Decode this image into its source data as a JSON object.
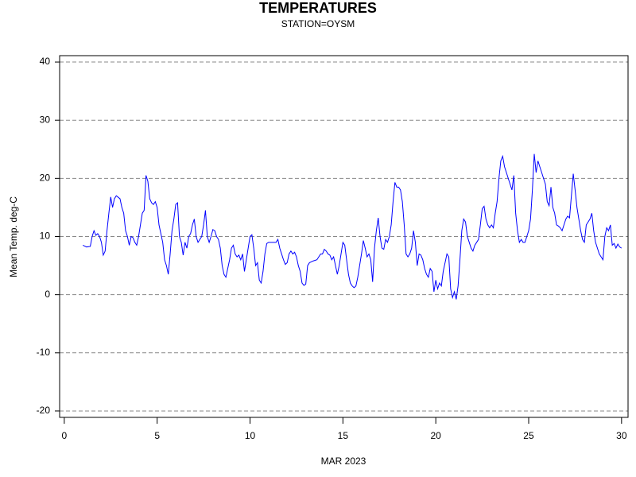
{
  "chart_data": {
    "type": "line",
    "title": "TEMPERATURES",
    "subtitle": "STATION=OYSM",
    "x_label": "MAR 2023",
    "y_label": "Mean Temp. deg-C",
    "color": "#0000ff",
    "grid": true,
    "xlim": [
      -0.25,
      30.35
    ],
    "ylim": [
      -21.1,
      41.1
    ],
    "xticks": [
      0,
      5,
      10,
      15,
      20,
      25,
      30
    ],
    "yticks": [
      -20,
      -10,
      0,
      10,
      20,
      30,
      40
    ],
    "x": [
      1.0,
      1.2,
      1.4,
      1.5,
      1.6,
      1.7,
      1.8,
      1.9,
      2.0,
      2.1,
      2.2,
      2.3,
      2.4,
      2.5,
      2.6,
      2.7,
      2.8,
      3.0,
      3.1,
      3.2,
      3.3,
      3.4,
      3.5,
      3.6,
      3.7,
      3.8,
      3.9,
      4.0,
      4.1,
      4.2,
      4.3,
      4.4,
      4.5,
      4.6,
      4.7,
      4.8,
      4.9,
      5.0,
      5.1,
      5.2,
      5.3,
      5.4,
      5.5,
      5.6,
      5.7,
      5.8,
      5.9,
      6.0,
      6.1,
      6.2,
      6.3,
      6.4,
      6.5,
      6.6,
      6.7,
      6.8,
      6.9,
      7.0,
      7.1,
      7.2,
      7.3,
      7.4,
      7.5,
      7.6,
      7.7,
      7.8,
      7.9,
      8.0,
      8.1,
      8.2,
      8.3,
      8.4,
      8.5,
      8.6,
      8.7,
      8.8,
      8.9,
      9.0,
      9.1,
      9.2,
      9.3,
      9.4,
      9.5,
      9.6,
      9.7,
      9.8,
      9.9,
      10.0,
      10.1,
      10.2,
      10.3,
      10.4,
      10.5,
      10.6,
      10.7,
      10.8,
      10.9,
      11.0,
      11.2,
      11.4,
      11.5,
      11.6,
      11.7,
      11.8,
      11.9,
      12.0,
      12.1,
      12.2,
      12.3,
      12.4,
      12.5,
      12.6,
      12.7,
      12.8,
      12.9,
      13.0,
      13.1,
      13.2,
      13.4,
      13.6,
      13.7,
      13.8,
      13.9,
      14.0,
      14.1,
      14.2,
      14.3,
      14.4,
      14.5,
      14.6,
      14.7,
      14.8,
      14.9,
      15.0,
      15.1,
      15.2,
      15.3,
      15.4,
      15.5,
      15.6,
      15.7,
      15.8,
      15.9,
      16.0,
      16.1,
      16.2,
      16.3,
      16.4,
      16.5,
      16.6,
      16.7,
      16.8,
      16.9,
      17.0,
      17.1,
      17.2,
      17.3,
      17.4,
      17.5,
      17.6,
      17.7,
      17.8,
      17.9,
      18.0,
      18.1,
      18.2,
      18.3,
      18.4,
      18.5,
      18.6,
      18.7,
      18.8,
      18.9,
      19.0,
      19.1,
      19.2,
      19.3,
      19.4,
      19.5,
      19.6,
      19.7,
      19.8,
      19.9,
      20.0,
      20.1,
      20.2,
      20.3,
      20.4,
      20.5,
      20.6,
      20.7,
      20.8,
      20.9,
      21.0,
      21.1,
      21.2,
      21.3,
      21.4,
      21.5,
      21.6,
      21.7,
      21.8,
      21.9,
      22.0,
      22.1,
      22.2,
      22.3,
      22.4,
      22.5,
      22.6,
      22.7,
      22.8,
      22.9,
      23.0,
      23.1,
      23.2,
      23.3,
      23.4,
      23.5,
      23.6,
      23.7,
      23.8,
      23.9,
      24.0,
      24.1,
      24.2,
      24.3,
      24.4,
      24.5,
      24.6,
      24.7,
      24.8,
      24.9,
      25.0,
      25.1,
      25.2,
      25.3,
      25.4,
      25.5,
      25.6,
      25.7,
      25.8,
      25.9,
      26.0,
      26.1,
      26.2,
      26.3,
      26.4,
      26.5,
      26.6,
      26.7,
      26.8,
      26.9,
      27.0,
      27.1,
      27.2,
      27.3,
      27.4,
      27.5,
      27.6,
      27.7,
      27.8,
      27.9,
      28.0,
      28.1,
      28.2,
      28.3,
      28.4,
      28.5,
      28.6,
      28.7,
      28.8,
      28.9,
      29.0,
      29.1,
      29.2,
      29.3,
      29.4,
      29.5,
      29.6,
      29.7,
      29.8,
      29.9,
      30.0
    ],
    "values": [
      8.5,
      8.2,
      8.3,
      10,
      11,
      10.2,
      10.5,
      10,
      9,
      6.8,
      7.5,
      11,
      14,
      16.8,
      15,
      16.5,
      17,
      16.5,
      15,
      14,
      11,
      10,
      8.5,
      10,
      9.8,
      9,
      8.5,
      10,
      12,
      14,
      14.5,
      20.5,
      19.5,
      16.5,
      15.8,
      15.5,
      16,
      15,
      12,
      10.5,
      9,
      6,
      5,
      3.5,
      7,
      11,
      13,
      15.5,
      15.8,
      10,
      9,
      6.8,
      9,
      8,
      10,
      10.5,
      12,
      13,
      10,
      9,
      9.5,
      10,
      12,
      14.5,
      10,
      9,
      10,
      11.2,
      11,
      10,
      9.5,
      8,
      5,
      3.5,
      3,
      4.5,
      6,
      8,
      8.5,
      7,
      6.5,
      6.8,
      6,
      7,
      4,
      6,
      8,
      10,
      10.3,
      8,
      5,
      5.5,
      2.5,
      2,
      4,
      7,
      8.8,
      9,
      9,
      9,
      9.5,
      8,
      7,
      6,
      5.2,
      5.5,
      7,
      7.5,
      7,
      7.3,
      6.5,
      5,
      4,
      2,
      1.6,
      1.8,
      5,
      5.5,
      5.8,
      6,
      6.5,
      7,
      7,
      7.8,
      7.5,
      7,
      6.8,
      6,
      6.5,
      5,
      3.5,
      5,
      7,
      9,
      8.5,
      6,
      3.5,
      2,
      1.5,
      1.2,
      1.5,
      3,
      5,
      7,
      9.3,
      8,
      6.5,
      7,
      6,
      2.2,
      8,
      11,
      13.2,
      10,
      8,
      7.8,
      9.5,
      9,
      10,
      12,
      16,
      19.3,
      18.5,
      18.5,
      18,
      16,
      12,
      7,
      6.5,
      7,
      8,
      11,
      9,
      5,
      7,
      6.8,
      6,
      4.5,
      3.5,
      3,
      4.5,
      4,
      0.5,
      2.5,
      1,
      2,
      1.5,
      4,
      5.5,
      7,
      6.5,
      1,
      -0.5,
      0.5,
      -0.8,
      1.5,
      6,
      11,
      13,
      12.5,
      10,
      9,
      8,
      7.5,
      8.5,
      9,
      9.5,
      12,
      14.8,
      15.2,
      13,
      12,
      11.5,
      12,
      11.5,
      14,
      16,
      20,
      23,
      23.8,
      22,
      21,
      20,
      19,
      18,
      20.5,
      14,
      11,
      9,
      9.5,
      9,
      9,
      10,
      11,
      13,
      18,
      24.2,
      21,
      23,
      22,
      21,
      20,
      19,
      16,
      15.3,
      18.5,
      15,
      14,
      12,
      11.8,
      11.5,
      11,
      12,
      13,
      13.5,
      13.2,
      17,
      20.8,
      18,
      15,
      13,
      11,
      9.5,
      9,
      12,
      12.5,
      13,
      14,
      11,
      9,
      8,
      7,
      6.5,
      6,
      10,
      11.5,
      11,
      12,
      8.5,
      8.8,
      8,
      8.7,
      8.2,
      8
    ]
  }
}
